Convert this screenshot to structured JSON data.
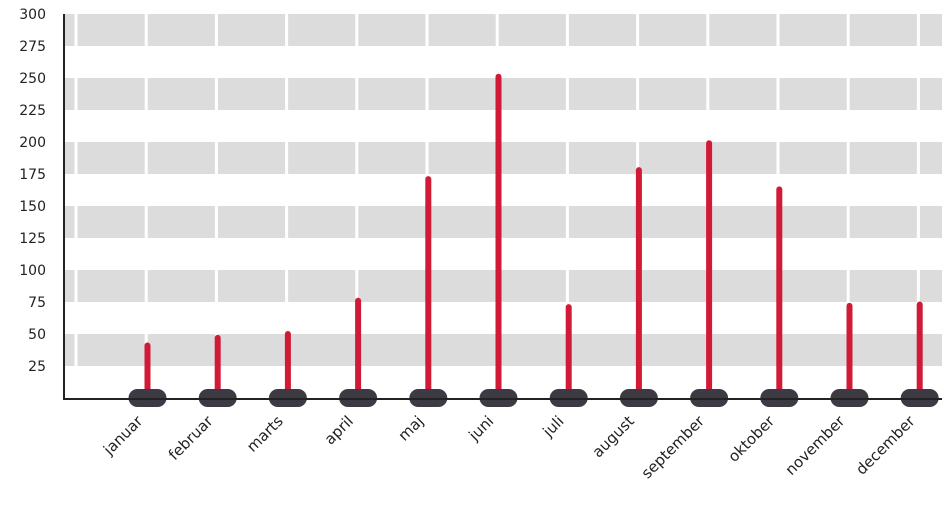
{
  "chart_data": {
    "type": "bar",
    "categories": [
      "januar",
      "februar",
      "marts",
      "april",
      "maj",
      "juni",
      "juli",
      "august",
      "september",
      "oktober",
      "november",
      "december"
    ],
    "values": [
      41,
      47,
      50,
      76,
      171,
      251,
      71,
      178,
      199,
      163,
      72,
      73
    ],
    "ylim": [
      0,
      300
    ],
    "yticks": [
      25,
      50,
      75,
      100,
      125,
      150,
      175,
      200,
      225,
      250,
      275,
      300
    ],
    "grid": true,
    "colors": {
      "bar": "#d11a36",
      "base": "#3e3a44",
      "band": "#dcdcdc",
      "axis": "#222222"
    }
  }
}
